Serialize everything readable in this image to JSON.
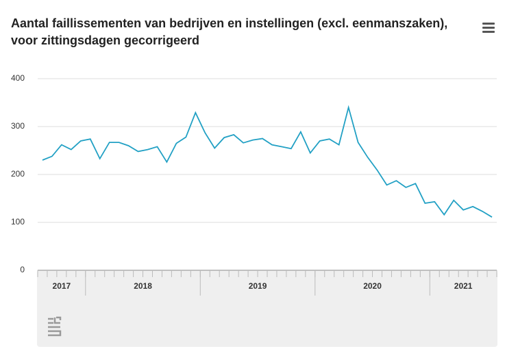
{
  "chart_data": {
    "type": "line",
    "title": "Aantal faillissementen van bedrijven en instellingen (excl. eenmanszaken), voor zittingsdagen gecorrigeerd",
    "categories": [
      null,
      null,
      null,
      null,
      null,
      null,
      null,
      null,
      null,
      null,
      null,
      null,
      null,
      null,
      null,
      null,
      null,
      null,
      null,
      null,
      null,
      null,
      null,
      null,
      null,
      null,
      null,
      null,
      null,
      null,
      null,
      null,
      null,
      null,
      null,
      null,
      null,
      null,
      null,
      null,
      null,
      null,
      null,
      null,
      null,
      null,
      null,
      null
    ],
    "year_labels": [
      "2017",
      "2018",
      "2019",
      "2020",
      "2021"
    ],
    "series": [
      {
        "name": "Faillissementen",
        "color": "#21a0c4",
        "values": [
          230,
          238,
          262,
          252,
          270,
          274,
          233,
          267,
          267,
          260,
          248,
          252,
          258,
          226,
          265,
          278,
          329,
          287,
          255,
          277,
          283,
          266,
          272,
          275,
          262,
          258,
          254,
          289,
          245,
          270,
          274,
          262,
          340,
          267,
          236,
          209,
          178,
          187,
          173,
          181,
          140,
          143,
          116,
          146,
          126,
          133,
          123,
          111
        ]
      }
    ],
    "ylim": [
      0,
      400
    ],
    "yticks": [
      0,
      100,
      200,
      300,
      400
    ],
    "grid": true
  }
}
